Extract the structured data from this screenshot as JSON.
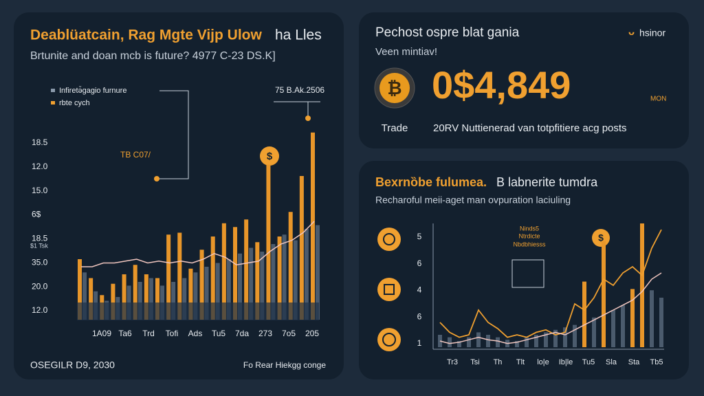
{
  "left_panel": {
    "title_a": "Deablüatcain, Rag Mgte  Vijp Ulow",
    "title_b": "ha Lles",
    "subtitle": "Brtunite and doan mcb is future? 4977 C-23 DS.K]",
    "legend": [
      "Infiretə̆gagio furnure",
      "rbte cych"
    ],
    "callout_top": "75 B.Ak.2506",
    "callout_mid": "TB C07/",
    "coin": "$",
    "y_labels": [
      "18.5",
      "12.0",
      "15.0",
      "6$",
      "18.5",
      "35.0",
      "20.0",
      "12.0"
    ],
    "y_note": "$1 Tsk",
    "x_labels": [
      "1A09",
      "Ta6",
      "Trd",
      "Tofi",
      "Ads",
      "Tu5",
      "7da",
      "273",
      "7o5",
      "205"
    ],
    "footer_left": "OSEGILR D9, 2030",
    "footer_right": "Fo Rear Hiekgg conge",
    "chart": {
      "ylim": [
        0,
        100
      ],
      "orange": [
        32,
        22,
        13,
        19,
        24,
        29,
        24,
        22,
        45,
        46,
        27,
        37,
        44,
        51,
        49,
        53,
        41,
        82,
        44,
        57,
        76,
        99
      ],
      "gray": [
        25,
        15,
        10,
        12,
        18,
        20,
        22,
        18,
        20,
        22,
        25,
        28,
        30,
        32,
        35,
        38,
        36,
        40,
        45,
        42,
        48,
        50
      ],
      "line": [
        28,
        28,
        30,
        30,
        31,
        32,
        30,
        31,
        30,
        31,
        30,
        32,
        35,
        33,
        29,
        30,
        31,
        36,
        40,
        42,
        46,
        52
      ]
    }
  },
  "price_panel": {
    "title": "Pechost ospre blat gania",
    "brand": "hsinor",
    "subtitle": "Veen mintiav!",
    "coin": "₿",
    "price": "0$4,849",
    "unit": "MON",
    "coin_caption": "Trade",
    "caption": "20RV Nuttienerad van totpfitiere acg posts"
  },
  "right_panel": {
    "title_a": "Bexrnȍbe fulumea.",
    "title_b": "B labnerite tumdra",
    "subtitle": "Recharoful meii-aget man ovpuration laciuling",
    "note": [
      "Ninds5",
      "Ntrdicte",
      "Nbdbhiesss"
    ],
    "coin": "$",
    "y_labels": [
      "5",
      "6",
      "4",
      "6",
      "1"
    ],
    "x_labels": [
      "Tr3",
      "Tsi",
      "Th",
      "Tlt",
      "lo|e",
      "Ib|le",
      "Tu5",
      "Sla",
      "Sta",
      "Tb5"
    ],
    "chart": {
      "ylim": [
        0,
        100
      ],
      "orange_line": [
        20,
        12,
        8,
        10,
        30,
        20,
        15,
        8,
        10,
        8,
        12,
        14,
        10,
        12,
        35,
        30,
        40,
        55,
        50,
        60,
        65,
        58,
        80,
        95
      ],
      "white_line": [
        5,
        3,
        4,
        6,
        8,
        6,
        5,
        3,
        4,
        6,
        8,
        10,
        12,
        10,
        14,
        18,
        22,
        26,
        30,
        34,
        38,
        45,
        55,
        60
      ],
      "gray_bars": [
        10,
        8,
        5,
        8,
        12,
        10,
        8,
        6,
        5,
        8,
        10,
        12,
        14,
        16,
        18,
        20,
        24,
        28,
        30,
        34,
        38,
        42,
        46,
        40
      ],
      "orange_bars": [
        null,
        null,
        null,
        null,
        null,
        null,
        null,
        null,
        null,
        null,
        null,
        null,
        null,
        null,
        null,
        53,
        null,
        86,
        null,
        null,
        47,
        100,
        null,
        null
      ]
    }
  }
}
